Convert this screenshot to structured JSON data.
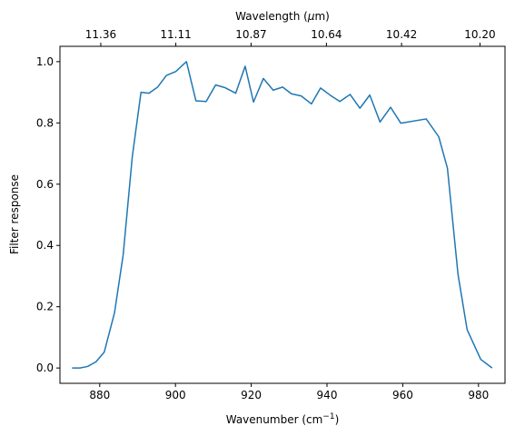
{
  "chart_data": {
    "type": "line",
    "title": "",
    "xlabel": "Wavenumber (cm",
    "xlabel_sup": "−1",
    "xlabel_end": ")",
    "ylabel": "Filter response",
    "top_xlabel": "Wavelength (",
    "top_xlabel_mu": "μ",
    "top_xlabel_end": "m)",
    "xlim": [
      869.5,
      987.0
    ],
    "ylim": [
      -0.05,
      1.05
    ],
    "x_ticks": [
      880,
      900,
      920,
      940,
      960,
      980
    ],
    "x_tick_labels": [
      "880",
      "900",
      "920",
      "940",
      "960",
      "980"
    ],
    "y_ticks": [
      0.0,
      0.2,
      0.4,
      0.6,
      0.8,
      1.0
    ],
    "y_tick_labels": [
      "0.0",
      "0.2",
      "0.4",
      "0.6",
      "0.8",
      "1.0"
    ],
    "top_ticks": [
      880.28,
      900.09,
      919.96,
      939.85,
      959.69,
      980.39
    ],
    "top_tick_labels": [
      "11.36",
      "11.11",
      "10.87",
      "10.64",
      "10.42",
      "10.20"
    ],
    "grid": false,
    "line_color": "#1f77b4",
    "series": [
      {
        "x": [
          872.7,
          874.8,
          876.8,
          879.0,
          881.2,
          883.9,
          886.2,
          888.6,
          890.9,
          893.0,
          895.3,
          897.6,
          900.1,
          902.9,
          905.4,
          908.1,
          910.6,
          913.1,
          915.9,
          918.4,
          920.6,
          923.2,
          925.8,
          928.3,
          930.6,
          933.2,
          935.9,
          938.3,
          940.9,
          943.4,
          946.1,
          948.7,
          951.3,
          954.0,
          956.8,
          959.5,
          966.2,
          969.5,
          971.8,
          974.6,
          977.0,
          980.6,
          983.6
        ],
        "y": [
          0.0,
          0.0,
          0.005,
          0.02,
          0.052,
          0.18,
          0.37,
          0.69,
          0.9,
          0.897,
          0.917,
          0.955,
          0.968,
          1.0,
          0.872,
          0.87,
          0.924,
          0.915,
          0.897,
          0.985,
          0.868,
          0.945,
          0.907,
          0.917,
          0.895,
          0.888,
          0.862,
          0.914,
          0.89,
          0.87,
          0.893,
          0.848,
          0.891,
          0.803,
          0.851,
          0.799,
          0.813,
          0.755,
          0.652,
          0.305,
          0.125,
          0.028,
          0.0
        ]
      }
    ]
  }
}
